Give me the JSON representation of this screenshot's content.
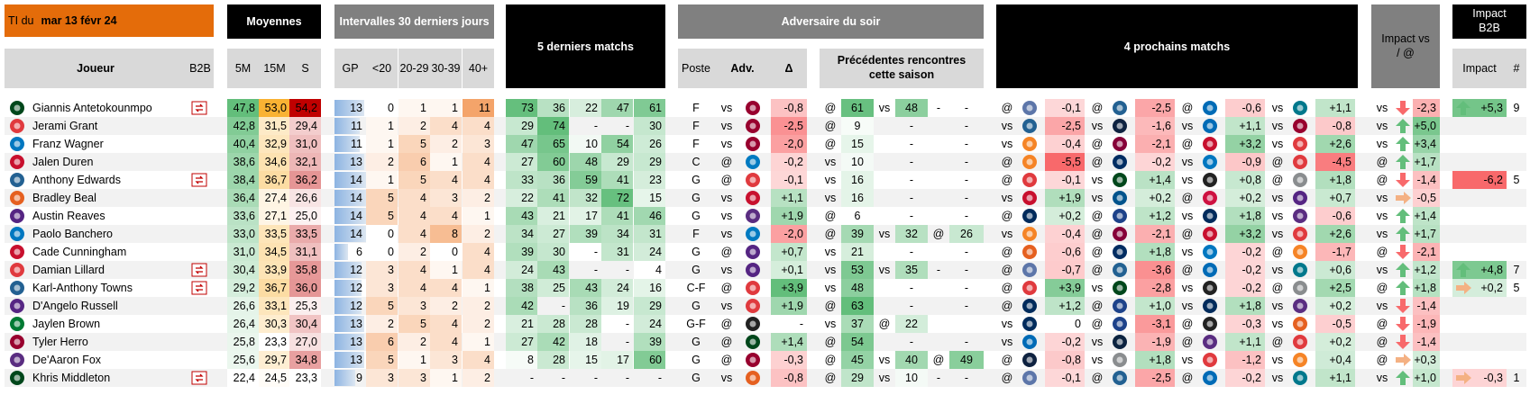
{
  "header": {
    "ti_label": "TI du",
    "date": "mar 13 févr 24"
  },
  "groups": {
    "moyennes": "Moyennes",
    "intervalles": "Intervalles 30 derniers jours",
    "derniers": "5 derniers matchs",
    "adversaire": "Adversaire du soir",
    "prochains": "4 prochains matchs",
    "impact_loc": "Impact vs / @",
    "impact_b2b": "Impact B2B"
  },
  "columns": {
    "joueur": "Joueur",
    "b2b": "B2B",
    "avg": [
      "5M",
      "15M",
      "S"
    ],
    "intervals": [
      "GP",
      "<20",
      "20-29",
      "30-39",
      "40+"
    ],
    "poste": "Poste",
    "adv": "Adv.",
    "delta": "Δ",
    "prev": "Précédentes rencontres cette saison",
    "b2b_impact": "Impact",
    "b2b_count": "#"
  },
  "rows": [
    {
      "logo": "#00471b",
      "name": "Giannis Antetokounmpo",
      "b2b": true,
      "avg": [
        "47,8",
        "53,0",
        "54,2"
      ],
      "intervals": [
        "13",
        "0",
        "1",
        "1",
        "11"
      ],
      "last5": [
        "73",
        "36",
        "22",
        "47",
        "61"
      ],
      "poste": "F",
      "loc": "vs",
      "adv_logo": "#98002e",
      "delta": "-0,8",
      "prev": [
        "@",
        "61",
        "vs",
        "48",
        "-",
        "-"
      ],
      "next": [
        {
          "loc": "@",
          "logo": "#5d76a9",
          "value": "-0,1"
        },
        {
          "loc": "@",
          "logo": "#236192",
          "value": "-2,5"
        },
        {
          "loc": "@",
          "logo": "#006bb6",
          "value": "-0,6"
        },
        {
          "loc": "vs",
          "logo": "#00788c",
          "value": "+1,1"
        }
      ],
      "impact": {
        "loc": "vs",
        "arrow": "down",
        "value": "-2,3"
      },
      "b2b_impact": {
        "arrow": "up",
        "value": "+5,3",
        "count": "9"
      }
    },
    {
      "logo": "#e03a3e",
      "name": "Jerami Grant",
      "b2b": false,
      "avg": [
        "42,8",
        "31,5",
        "29,4"
      ],
      "intervals": [
        "11",
        "1",
        "2",
        "4",
        "4"
      ],
      "last5": [
        "29",
        "74",
        "-",
        "-",
        "30"
      ],
      "poste": "F",
      "loc": "vs",
      "adv_logo": "#98002e",
      "delta": "-2,5",
      "prev": [
        "@",
        "9",
        null,
        "-",
        null,
        "-"
      ],
      "next": [
        {
          "loc": "vs",
          "logo": "#236192",
          "value": "-2,5"
        },
        {
          "loc": "vs",
          "logo": "#0e2240",
          "value": "-1,6"
        },
        {
          "loc": "vs",
          "logo": "#006bb6",
          "value": "+1,1"
        },
        {
          "loc": "vs",
          "logo": "#98002e",
          "value": "-0,8"
        }
      ],
      "impact": {
        "loc": "vs",
        "arrow": "up",
        "value": "+5,0"
      }
    },
    {
      "logo": "#0077c0",
      "name": "Franz Wagner",
      "b2b": false,
      "avg": [
        "40,4",
        "32,9",
        "31,0"
      ],
      "intervals": [
        "11",
        "1",
        "5",
        "2",
        "3"
      ],
      "last5": [
        "47",
        "65",
        "10",
        "54",
        "26"
      ],
      "poste": "F",
      "loc": "vs",
      "adv_logo": "#98002e",
      "delta": "-2,0",
      "prev": [
        "@",
        "15",
        null,
        "-",
        null,
        "-"
      ],
      "next": [
        {
          "loc": "vs",
          "logo": "#f58426",
          "value": "-0,4"
        },
        {
          "loc": "@",
          "logo": "#860038",
          "value": "-2,1"
        },
        {
          "loc": "@",
          "logo": "#c8102e",
          "value": "+3,2"
        },
        {
          "loc": "vs",
          "logo": "#e03a3e",
          "value": "+2,6"
        }
      ],
      "impact": {
        "loc": "vs",
        "arrow": "up",
        "value": "+3,4"
      }
    },
    {
      "logo": "#c8102e",
      "name": "Jalen Duren",
      "b2b": false,
      "avg": [
        "38,6",
        "34,6",
        "32,1"
      ],
      "intervals": [
        "13",
        "2",
        "6",
        "1",
        "4"
      ],
      "last5": [
        "27",
        "60",
        "48",
        "29",
        "29"
      ],
      "poste": "C",
      "loc": "@",
      "adv_logo": "#007ac1",
      "delta": "-0,2",
      "prev": [
        "vs",
        "10",
        null,
        "-",
        null,
        "-"
      ],
      "next": [
        {
          "loc": "@",
          "logo": "#f58426",
          "value": "-5,5"
        },
        {
          "loc": "@",
          "logo": "#002d62",
          "value": "-0,2"
        },
        {
          "loc": "vs",
          "logo": "#0077c0",
          "value": "-0,9"
        },
        {
          "loc": "@",
          "logo": "#e03a3e",
          "value": "-4,5"
        }
      ],
      "impact": {
        "loc": "@",
        "arrow": "up",
        "value": "+1,7"
      }
    },
    {
      "logo": "#236192",
      "name": "Anthony Edwards",
      "b2b": true,
      "avg": [
        "38,4",
        "36,7",
        "36,2"
      ],
      "intervals": [
        "14",
        "1",
        "5",
        "4",
        "4"
      ],
      "last5": [
        "33",
        "36",
        "59",
        "41",
        "23"
      ],
      "poste": "G",
      "loc": "@",
      "adv_logo": "#e03a3e",
      "delta": "-0,1",
      "prev": [
        "vs",
        "16",
        null,
        "-",
        null,
        "-"
      ],
      "next": [
        {
          "loc": "@",
          "logo": "#e03a3e",
          "value": "-0,1"
        },
        {
          "loc": "vs",
          "logo": "#00471b",
          "value": "+1,4"
        },
        {
          "loc": "vs",
          "logo": "#222222",
          "value": "+0,8"
        },
        {
          "loc": "@",
          "logo": "#8a8d8f",
          "value": "+1,8"
        }
      ],
      "impact": {
        "loc": "@",
        "arrow": "down",
        "value": "-1,4"
      },
      "b2b_impact": {
        "arrow": "down",
        "value": "-6,2",
        "count": "5"
      }
    },
    {
      "logo": "#e56020",
      "name": "Bradley Beal",
      "b2b": false,
      "avg": [
        "36,4",
        "27,4",
        "26,6"
      ],
      "intervals": [
        "14",
        "5",
        "4",
        "3",
        "2"
      ],
      "last5": [
        "22",
        "41",
        "32",
        "72",
        "15"
      ],
      "poste": "G",
      "loc": "vs",
      "adv_logo": "#c8102e",
      "delta": "+1,1",
      "prev": [
        "vs",
        "16",
        null,
        "-",
        null,
        "-"
      ],
      "next": [
        {
          "loc": "vs",
          "logo": "#c8102e",
          "value": "+1,9"
        },
        {
          "loc": "vs",
          "logo": "#00538c",
          "value": "+0,2"
        },
        {
          "loc": "@",
          "logo": "#ce1141",
          "value": "+0,2"
        },
        {
          "loc": "vs",
          "logo": "#552583",
          "value": "+0,7"
        }
      ],
      "impact": {
        "loc": "vs",
        "arrow": "right",
        "value": "-0,5"
      }
    },
    {
      "logo": "#552583",
      "name": "Austin Reaves",
      "b2b": false,
      "avg": [
        "33,6",
        "27,1",
        "25,0"
      ],
      "intervals": [
        "14",
        "5",
        "4",
        "4",
        "1"
      ],
      "last5": [
        "43",
        "21",
        "17",
        "41",
        "46"
      ],
      "poste": "G",
      "loc": "vs",
      "adv_logo": "#5a2d81",
      "delta": "+1,9",
      "prev": [
        "@",
        "6",
        null,
        "-",
        null,
        "-"
      ],
      "next": [
        {
          "loc": "@",
          "logo": "#002b5c",
          "value": "+0,2"
        },
        {
          "loc": "@",
          "logo": "#1d428a",
          "value": "+1,2"
        },
        {
          "loc": "vs",
          "logo": "#002b5c",
          "value": "+1,8"
        },
        {
          "loc": "vs",
          "logo": "#5a2d81",
          "value": "-0,6"
        }
      ],
      "impact": {
        "loc": "vs",
        "arrow": "up",
        "value": "+1,4"
      }
    },
    {
      "logo": "#0077c0",
      "name": "Paolo Banchero",
      "b2b": false,
      "avg": [
        "33,0",
        "33,5",
        "33,5"
      ],
      "intervals": [
        "14",
        "0",
        "4",
        "8",
        "2"
      ],
      "last5": [
        "34",
        "27",
        "39",
        "34",
        "31"
      ],
      "poste": "F",
      "loc": "vs",
      "adv_logo": "#007ac1",
      "delta": "-2,0",
      "prev": [
        "@",
        "39",
        "vs",
        "32",
        "@",
        "26"
      ],
      "next": [
        {
          "loc": "vs",
          "logo": "#f58426",
          "value": "-0,4"
        },
        {
          "loc": "@",
          "logo": "#860038",
          "value": "-2,1"
        },
        {
          "loc": "@",
          "logo": "#c8102e",
          "value": "+3,2"
        },
        {
          "loc": "vs",
          "logo": "#e03a3e",
          "value": "+2,6"
        }
      ],
      "impact": {
        "loc": "vs",
        "arrow": "up",
        "value": "+1,7"
      }
    },
    {
      "logo": "#c8102e",
      "name": "Cade Cunningham",
      "b2b": false,
      "avg": [
        "31,0",
        "34,5",
        "31,1"
      ],
      "intervals": [
        "6",
        "0",
        "2",
        "0",
        "4"
      ],
      "last5": [
        "39",
        "30",
        "-",
        "31",
        "24"
      ],
      "poste": "G",
      "loc": "@",
      "adv_logo": "#552583",
      "delta": "+0,7",
      "prev": [
        "vs",
        "21",
        null,
        "-",
        null,
        "-"
      ],
      "next": [
        {
          "loc": "@",
          "logo": "#e56020",
          "value": "-0,6"
        },
        {
          "loc": "@",
          "logo": "#002d62",
          "value": "+1,8"
        },
        {
          "loc": "vs",
          "logo": "#0077c0",
          "value": "-0,2"
        },
        {
          "loc": "@",
          "logo": "#f58426",
          "value": "-1,7"
        }
      ],
      "impact": {
        "loc": "@",
        "arrow": "down",
        "value": "-2,1"
      }
    },
    {
      "logo": "#e03a3e",
      "name": "Damian Lillard",
      "b2b": true,
      "avg": [
        "30,4",
        "33,9",
        "35,8"
      ],
      "intervals": [
        "12",
        "3",
        "4",
        "1",
        "4"
      ],
      "last5": [
        "24",
        "43",
        "-",
        "-",
        "4"
      ],
      "poste": "G",
      "loc": "vs",
      "adv_logo": "#552583",
      "delta": "+0,1",
      "prev": [
        "vs",
        "53",
        "vs",
        "35",
        "-",
        "-"
      ],
      "next": [
        {
          "loc": "@",
          "logo": "#5d76a9",
          "value": "-0,7"
        },
        {
          "loc": "@",
          "logo": "#236192",
          "value": "-3,6"
        },
        {
          "loc": "@",
          "logo": "#006bb6",
          "value": "-0,2"
        },
        {
          "loc": "vs",
          "logo": "#00788c",
          "value": "+0,6"
        }
      ],
      "impact": {
        "loc": "vs",
        "arrow": "up",
        "value": "+1,2"
      },
      "b2b_impact": {
        "arrow": "up",
        "value": "+4,8",
        "count": "7"
      }
    },
    {
      "logo": "#236192",
      "name": "Karl-Anthony Towns",
      "b2b": true,
      "avg": [
        "29,2",
        "36,7",
        "36,0"
      ],
      "intervals": [
        "12",
        "3",
        "4",
        "4",
        "1"
      ],
      "last5": [
        "38",
        "25",
        "43",
        "24",
        "16"
      ],
      "poste": "C-F",
      "loc": "@",
      "adv_logo": "#e03a3e",
      "delta": "+3,9",
      "prev": [
        "vs",
        "48",
        null,
        "-",
        null,
        "-"
      ],
      "next": [
        {
          "loc": "@",
          "logo": "#e03a3e",
          "value": "+3,9"
        },
        {
          "loc": "vs",
          "logo": "#00471b",
          "value": "-2,8"
        },
        {
          "loc": "vs",
          "logo": "#222222",
          "value": "-0,2"
        },
        {
          "loc": "@",
          "logo": "#8a8d8f",
          "value": "+2,5"
        }
      ],
      "impact": {
        "loc": "@",
        "arrow": "up",
        "value": "+1,8"
      },
      "b2b_impact": {
        "arrow": "right",
        "value": "+0,2",
        "count": "5"
      }
    },
    {
      "logo": "#552583",
      "name": "D'Angelo Russell",
      "b2b": false,
      "avg": [
        "26,6",
        "33,1",
        "25,3"
      ],
      "intervals": [
        "12",
        "5",
        "3",
        "2",
        "2"
      ],
      "last5": [
        "42",
        "-",
        "36",
        "19",
        "29"
      ],
      "poste": "G",
      "loc": "vs",
      "adv_logo": "#e03a3e",
      "delta": "+1,9",
      "prev": [
        "@",
        "63",
        null,
        "-",
        null,
        "-"
      ],
      "next": [
        {
          "loc": "@",
          "logo": "#002b5c",
          "value": "+1,2"
        },
        {
          "loc": "@",
          "logo": "#1d428a",
          "value": "+1,0"
        },
        {
          "loc": "vs",
          "logo": "#002b5c",
          "value": "+1,8"
        },
        {
          "loc": "vs",
          "logo": "#5a2d81",
          "value": "+0,2"
        }
      ],
      "impact": {
        "loc": "vs",
        "arrow": "down",
        "value": "-1,4"
      }
    },
    {
      "logo": "#007a33",
      "name": "Jaylen Brown",
      "b2b": false,
      "avg": [
        "26,4",
        "30,3",
        "30,4"
      ],
      "intervals": [
        "13",
        "2",
        "5",
        "4",
        "2"
      ],
      "last5": [
        "21",
        "28",
        "28",
        "-",
        "24"
      ],
      "poste": "G-F",
      "loc": "@",
      "adv_logo": "#222222",
      "delta": "-",
      "prev": [
        "vs",
        "37",
        "@",
        "22",
        null,
        null
      ],
      "next": [
        {
          "loc": "vs",
          "logo": "#002b5c",
          "value": "0"
        },
        {
          "loc": "@",
          "logo": "#1d428a",
          "value": "-3,1"
        },
        {
          "loc": "@",
          "logo": "#222222",
          "value": "-0,3"
        },
        {
          "loc": "vs",
          "logo": "#e56020",
          "value": "-0,5"
        }
      ],
      "impact": {
        "loc": "@",
        "arrow": "down",
        "value": "-1,9"
      }
    },
    {
      "logo": "#98002e",
      "name": "Tyler Herro",
      "b2b": false,
      "avg": [
        "25,8",
        "23,3",
        "27,0"
      ],
      "intervals": [
        "13",
        "6",
        "2",
        "4",
        "1"
      ],
      "last5": [
        "27",
        "42",
        "18",
        "-",
        "39"
      ],
      "poste": "G",
      "loc": "@",
      "adv_logo": "#00471b",
      "delta": "+1,4",
      "prev": [
        "@",
        "54",
        null,
        "-",
        null,
        "-"
      ],
      "next": [
        {
          "loc": "vs",
          "logo": "#006bb6",
          "value": "-0,2"
        },
        {
          "loc": "vs",
          "logo": "#0c2340",
          "value": "-1,9"
        },
        {
          "loc": "@",
          "logo": "#5a2d81",
          "value": "+1,1"
        },
        {
          "loc": "@",
          "logo": "#e03a3e",
          "value": "+0,2"
        }
      ],
      "impact": {
        "loc": "@",
        "arrow": "down",
        "value": "-1,4"
      }
    },
    {
      "logo": "#5a2d81",
      "name": "De'Aaron Fox",
      "b2b": false,
      "avg": [
        "25,6",
        "29,7",
        "34,8"
      ],
      "intervals": [
        "13",
        "5",
        "1",
        "3",
        "4"
      ],
      "last5": [
        "8",
        "28",
        "15",
        "17",
        "60"
      ],
      "poste": "G",
      "loc": "@",
      "adv_logo": "#98002e",
      "delta": "-0,3",
      "prev": [
        "@",
        "45",
        "vs",
        "40",
        "@",
        "49"
      ],
      "next": [
        {
          "loc": "@",
          "logo": "#0e2240",
          "value": "-0,8"
        },
        {
          "loc": "vs",
          "logo": "#8a8d8f",
          "value": "+1,8"
        },
        {
          "loc": "vs",
          "logo": "#e03a3e",
          "value": "-1,2"
        },
        {
          "loc": "vs",
          "logo": "#f58426",
          "value": "+0,4"
        }
      ],
      "impact": {
        "loc": "@",
        "arrow": "right",
        "value": "+0,3"
      }
    },
    {
      "logo": "#00471b",
      "name": "Khris Middleton",
      "b2b": true,
      "avg": [
        "22,4",
        "24,5",
        "23,3"
      ],
      "intervals": [
        "9",
        "3",
        "3",
        "1",
        "2"
      ],
      "last5": [
        "-",
        "-",
        "-",
        "-",
        "-"
      ],
      "poste": "G",
      "loc": "vs",
      "adv_logo": "#e56020",
      "delta": "-0,8",
      "prev": [
        "@",
        "29",
        "vs",
        "10",
        "-",
        "-"
      ],
      "next": [
        {
          "loc": "@",
          "logo": "#5d76a9",
          "value": "-0,1"
        },
        {
          "loc": "@",
          "logo": "#236192",
          "value": "-2,5"
        },
        {
          "loc": "@",
          "logo": "#006bb6",
          "value": "-0,2"
        },
        {
          "loc": "vs",
          "logo": "#00788c",
          "value": "+1,1"
        }
      ],
      "impact": {
        "loc": "vs",
        "arrow": "up",
        "value": "+1,0"
      },
      "b2b_impact": {
        "arrow": "right",
        "value": "-0,3",
        "count": "1"
      }
    }
  ]
}
